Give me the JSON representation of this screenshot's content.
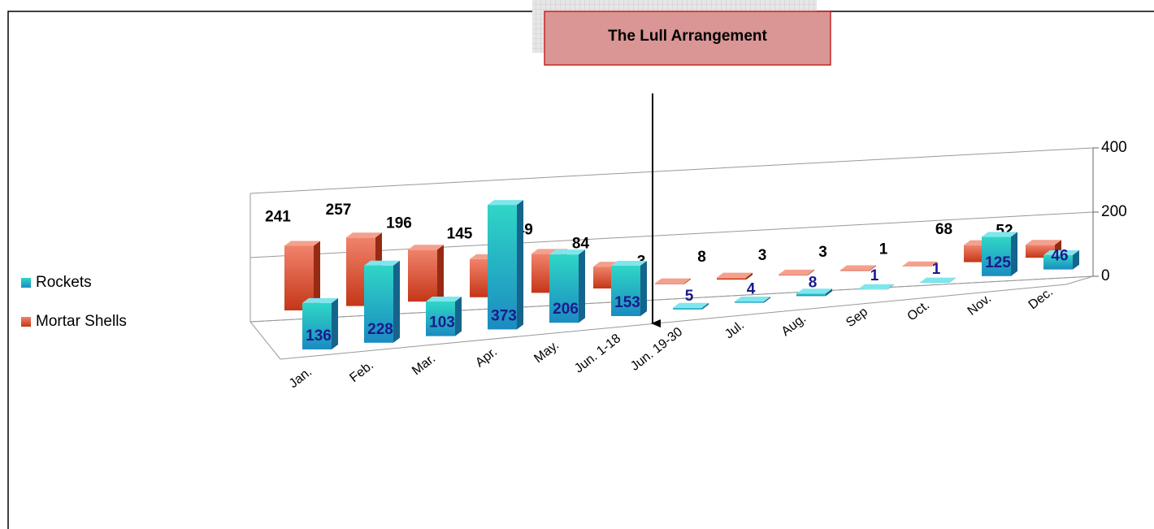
{
  "chart_data": {
    "type": "bar",
    "annotation": "The Lull Arrangement",
    "categories": [
      "Jan.",
      "Feb.",
      "Mar.",
      "Apr.",
      "May.",
      "Jun. 1-18",
      "Jun. 19-30",
      "Jul.",
      "Aug.",
      "Sep",
      "Oct.",
      "Nov.",
      "Dec."
    ],
    "series": [
      {
        "name": "Rockets",
        "color": "#1e9ad6",
        "values": [
          136,
          228,
          103,
          373,
          206,
          153,
          5,
          4,
          8,
          1,
          1,
          125,
          46
        ]
      },
      {
        "name": "Mortar Shells",
        "color": "#e8401c",
        "values": [
          241,
          257,
          196,
          145,
          149,
          84,
          3,
          8,
          3,
          3,
          1,
          68,
          52
        ]
      }
    ],
    "ylim": [
      0,
      400
    ],
    "yticks": [
      0,
      200,
      400
    ],
    "grid": true,
    "legend": "left"
  }
}
